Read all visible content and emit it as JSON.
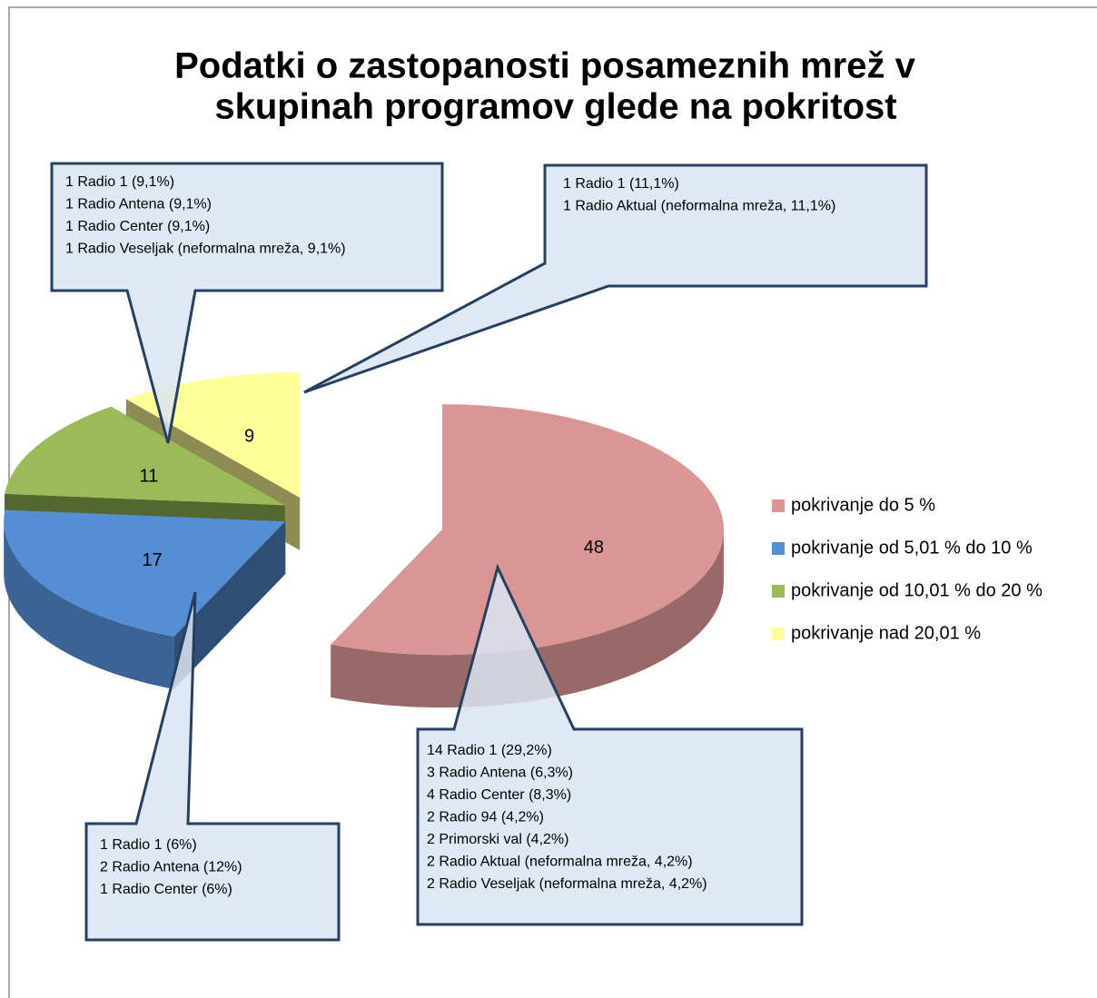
{
  "chart_data": {
    "type": "pie",
    "title": [
      "Podatki o zastopanosti posameznih mrež v",
      "skupinah programov glede na pokritost"
    ],
    "categories": [
      "pokrivanje do 5 %",
      "pokrivanje od 5,01 % do 10 %",
      "pokrivanje od 10,01 % do 20 %",
      "pokrivanje nad 20,01 %"
    ],
    "values": [
      48,
      17,
      11,
      9
    ],
    "colors": [
      "#d99694",
      "#558ed5",
      "#9bbb59",
      "#ffff99"
    ],
    "legend": "right",
    "annotations": [
      [
        "14 Radio 1 (29,2%)",
        "3 Radio Antena (6,3%)",
        "4 Radio Center (8,3%)",
        "2 Radio 94 (4,2%)",
        "2 Primorski val (4,2%)",
        "2 Radio Aktual (neformalna mreža, 4,2%)",
        "2 Radio Veseljak (neformalna mreža, 4,2%)"
      ],
      [
        "1 Radio 1 (6%)",
        "2 Radio Antena (12%)",
        "1 Radio Center (6%)"
      ],
      [
        "1 Radio 1 (9,1%)",
        "1 Radio Antena (9,1%)",
        "1 Radio Center (9,1%)",
        "1 Radio Veseljak (neformalna mreža, 9,1%)"
      ],
      [
        "1 Radio 1 (11,1%)",
        "1 Radio Aktual (neformalna mreža, 11,1%)"
      ]
    ]
  }
}
